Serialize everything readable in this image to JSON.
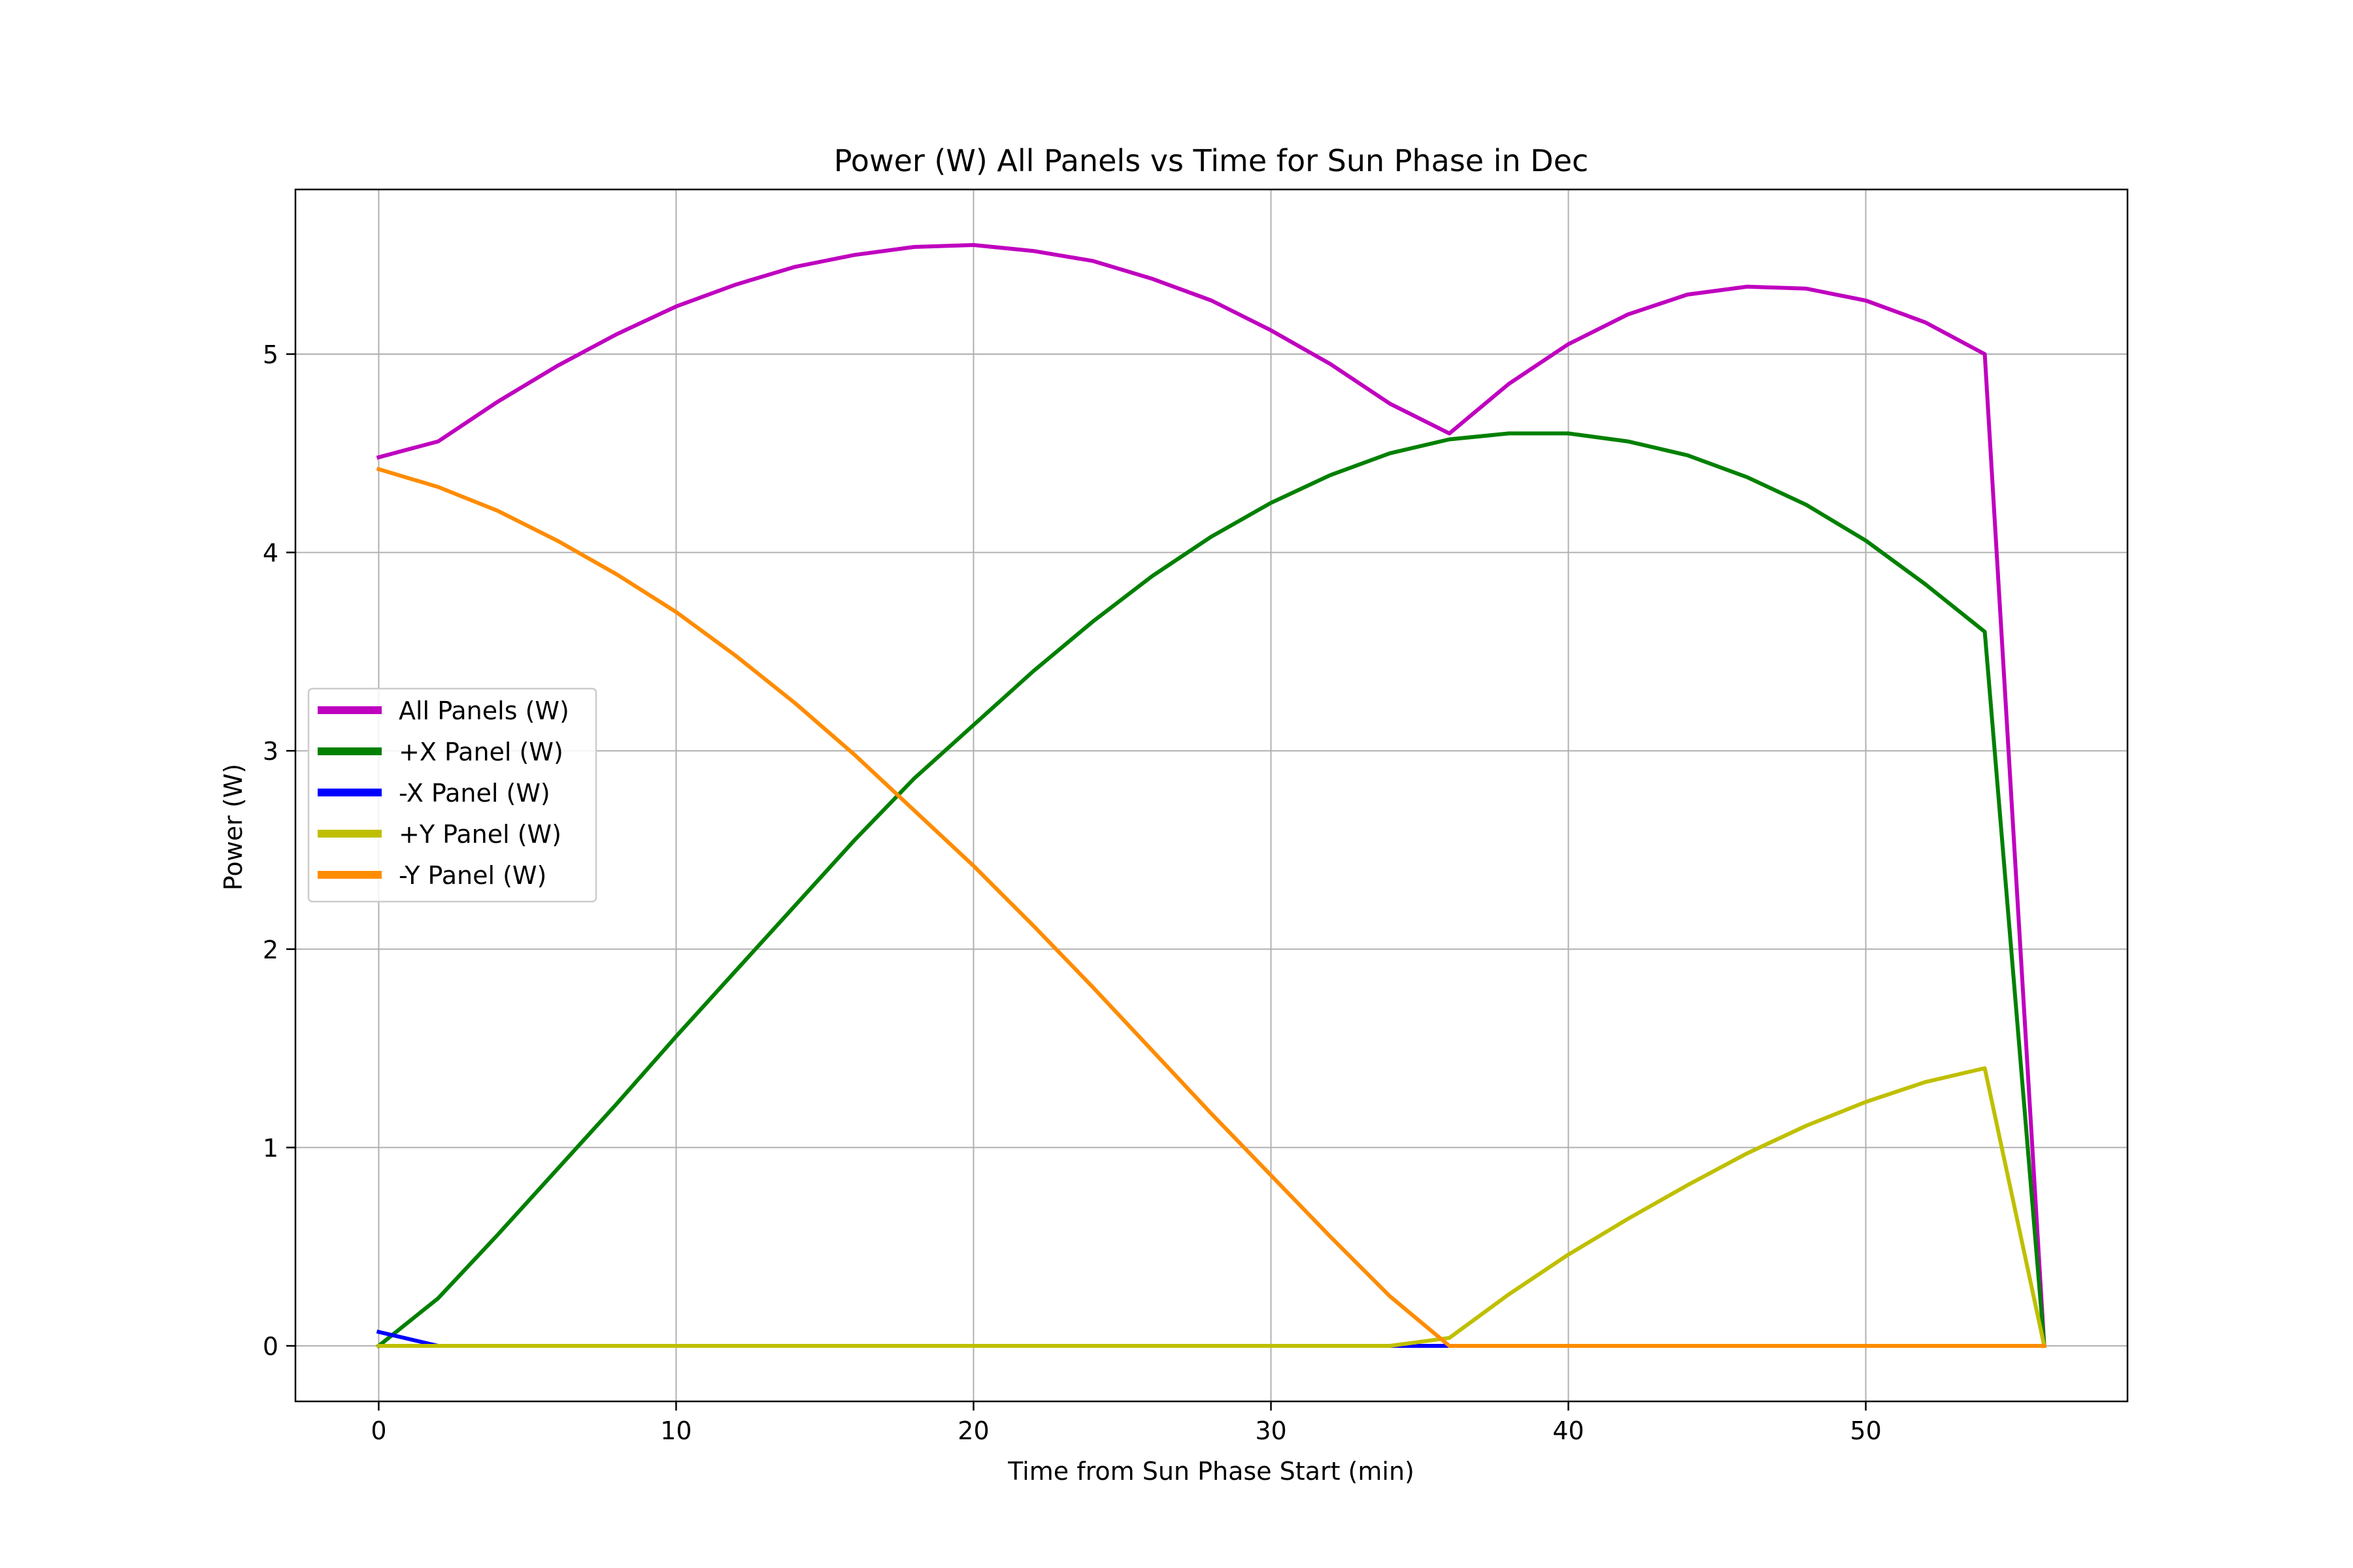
{
  "chart_data": {
    "type": "line",
    "title": "Power (W) All Panels vs Time for Sun Phase in Dec",
    "xlabel": "Time from Sun Phase Start (min)",
    "ylabel": "Power (W)",
    "xlim": [
      -2.8,
      58.8
    ],
    "ylim": [
      -0.28,
      5.83
    ],
    "xticks": [
      0,
      10,
      20,
      30,
      40,
      50
    ],
    "yticks": [
      0,
      1,
      2,
      3,
      4,
      5
    ],
    "grid": true,
    "legend_position": "center-left",
    "x": [
      0,
      2,
      4,
      6,
      8,
      10,
      12,
      14,
      16,
      18,
      20,
      22,
      24,
      26,
      28,
      30,
      32,
      34,
      36,
      38,
      40,
      42,
      44,
      46,
      48,
      50,
      52,
      54,
      56
    ],
    "series": [
      {
        "name": "All Panels (W)",
        "color": "#bf00bf",
        "values": [
          4.48,
          4.56,
          4.76,
          4.94,
          5.1,
          5.24,
          5.35,
          5.44,
          5.5,
          5.54,
          5.55,
          5.52,
          5.47,
          5.38,
          5.27,
          5.12,
          4.95,
          4.75,
          4.6,
          4.85,
          5.05,
          5.2,
          5.3,
          5.34,
          5.33,
          5.27,
          5.16,
          5.0,
          0.0
        ]
      },
      {
        "name": "+X Panel (W)",
        "color": "#008000",
        "values": [
          0.0,
          0.24,
          0.56,
          0.89,
          1.22,
          1.56,
          1.89,
          2.22,
          2.55,
          2.86,
          3.13,
          3.4,
          3.65,
          3.88,
          4.08,
          4.25,
          4.39,
          4.5,
          4.57,
          4.6,
          4.6,
          4.56,
          4.49,
          4.38,
          4.24,
          4.06,
          3.84,
          3.6,
          0.0
        ]
      },
      {
        "name": "-X Panel (W)",
        "color": "#0000ff",
        "values": [
          0.07,
          0.0,
          0.0,
          0.0,
          0.0,
          0.0,
          0.0,
          0.0,
          0.0,
          0.0,
          0.0,
          0.0,
          0.0,
          0.0,
          0.0,
          0.0,
          0.0,
          0.0,
          0.0,
          0.0,
          0.0,
          0.0,
          0.0,
          0.0,
          0.0,
          0.0,
          0.0,
          0.0,
          0.0
        ]
      },
      {
        "name": "+Y Panel (W)",
        "color": "#bfbf00",
        "values": [
          0.0,
          0.0,
          0.0,
          0.0,
          0.0,
          0.0,
          0.0,
          0.0,
          0.0,
          0.0,
          0.0,
          0.0,
          0.0,
          0.0,
          0.0,
          0.0,
          0.0,
          0.0,
          0.04,
          0.26,
          0.46,
          0.64,
          0.81,
          0.97,
          1.11,
          1.23,
          1.33,
          1.4,
          0.0
        ]
      },
      {
        "name": "-Y Panel (W)",
        "color": "#ff8c00",
        "values": [
          4.42,
          4.33,
          4.21,
          4.06,
          3.89,
          3.7,
          3.48,
          3.24,
          2.98,
          2.7,
          2.42,
          2.12,
          1.81,
          1.49,
          1.17,
          0.86,
          0.55,
          0.25,
          0.0,
          0.0,
          0.0,
          0.0,
          0.0,
          0.0,
          0.0,
          0.0,
          0.0,
          0.0,
          0.0
        ]
      }
    ]
  }
}
